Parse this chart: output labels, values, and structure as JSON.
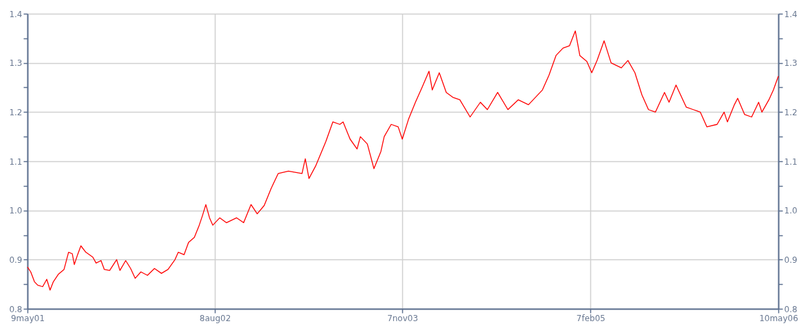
{
  "chart_data": {
    "type": "line",
    "x": [
      "2001-05-09",
      "2001-05-17",
      "2001-05-26",
      "2001-06-03",
      "2001-06-15",
      "2001-06-25",
      "2001-07-03",
      "2001-07-11",
      "2001-07-23",
      "2001-08-06",
      "2001-08-17",
      "2001-08-26",
      "2001-08-31",
      "2001-09-08",
      "2001-09-16",
      "2001-09-28",
      "2001-10-15",
      "2001-10-23",
      "2001-11-04",
      "2001-11-12",
      "2001-11-25",
      "2001-12-12",
      "2001-12-20",
      "2002-01-03",
      "2002-01-15",
      "2002-01-26",
      "2002-02-09",
      "2002-02-25",
      "2002-03-14",
      "2002-03-31",
      "2002-04-16",
      "2002-05-03",
      "2002-05-11",
      "2002-05-25",
      "2002-06-05",
      "2002-06-19",
      "2002-07-01",
      "2002-07-09",
      "2002-07-17",
      "2002-07-26",
      "2002-08-03",
      "2002-08-20",
      "2002-09-05",
      "2002-09-30",
      "2002-10-17",
      "2002-11-04",
      "2002-11-19",
      "2002-12-06",
      "2002-12-23",
      "2003-01-09",
      "2003-02-03",
      "2003-03-08",
      "2003-03-16",
      "2003-03-25",
      "2003-04-10",
      "2003-05-05",
      "2003-05-22",
      "2003-06-08",
      "2003-06-16",
      "2003-07-03",
      "2003-07-20",
      "2003-07-28",
      "2003-08-14",
      "2003-08-30",
      "2003-09-16",
      "2003-09-24",
      "2003-10-11",
      "2003-10-28",
      "2003-11-07",
      "2003-11-22",
      "2003-12-09",
      "2003-12-25",
      "2004-01-11",
      "2004-01-19",
      "2004-02-05",
      "2004-02-22",
      "2004-03-09",
      "2004-03-26",
      "2004-04-20",
      "2004-05-15",
      "2004-06-01",
      "2004-06-26",
      "2004-07-21",
      "2004-08-15",
      "2004-09-09",
      "2004-09-26",
      "2004-10-13",
      "2004-10-29",
      "2004-11-15",
      "2004-12-02",
      "2004-12-18",
      "2005-01-01",
      "2005-01-12",
      "2005-01-29",
      "2005-02-10",
      "2005-02-23",
      "2005-03-12",
      "2005-03-29",
      "2005-04-23",
      "2005-05-09",
      "2005-05-26",
      "2005-06-12",
      "2005-06-28",
      "2005-07-15",
      "2005-08-06",
      "2005-08-17",
      "2005-09-03",
      "2005-09-28",
      "2005-10-15",
      "2005-11-01",
      "2005-11-17",
      "2005-12-12",
      "2005-12-29",
      "2006-01-06",
      "2006-01-23",
      "2006-01-31",
      "2006-02-17",
      "2006-03-06",
      "2006-03-23",
      "2006-03-31",
      "2006-04-17",
      "2006-04-28",
      "2006-05-10"
    ],
    "series": [
      {
        "color": "#ff0000",
        "values": [
          0.885,
          0.875,
          0.855,
          0.848,
          0.845,
          0.86,
          0.838,
          0.855,
          0.87,
          0.88,
          0.915,
          0.912,
          0.89,
          0.91,
          0.928,
          0.915,
          0.905,
          0.893,
          0.898,
          0.88,
          0.878,
          0.9,
          0.878,
          0.898,
          0.882,
          0.862,
          0.875,
          0.868,
          0.882,
          0.872,
          0.88,
          0.9,
          0.915,
          0.91,
          0.935,
          0.945,
          0.97,
          0.99,
          1.012,
          0.985,
          0.97,
          0.985,
          0.975,
          0.985,
          0.975,
          1.012,
          0.993,
          1.01,
          1.045,
          1.075,
          1.08,
          1.075,
          1.105,
          1.065,
          1.09,
          1.14,
          1.18,
          1.175,
          1.18,
          1.145,
          1.125,
          1.15,
          1.135,
          1.085,
          1.12,
          1.15,
          1.175,
          1.17,
          1.145,
          1.185,
          1.22,
          1.25,
          1.283,
          1.245,
          1.28,
          1.24,
          1.23,
          1.225,
          1.19,
          1.22,
          1.205,
          1.24,
          1.205,
          1.225,
          1.215,
          1.23,
          1.245,
          1.275,
          1.315,
          1.33,
          1.335,
          1.365,
          1.315,
          1.303,
          1.28,
          1.305,
          1.345,
          1.3,
          1.29,
          1.305,
          1.28,
          1.235,
          1.205,
          1.2,
          1.24,
          1.22,
          1.255,
          1.21,
          1.205,
          1.2,
          1.17,
          1.175,
          1.2,
          1.18,
          1.215,
          1.228,
          1.195,
          1.19,
          1.22,
          1.2,
          1.225,
          1.245,
          1.273
        ]
      }
    ],
    "xlim": [
      "2001-05-09",
      "2006-05-10"
    ],
    "xticks": [
      {
        "value": "2001-05-09",
        "label": "9may01"
      },
      {
        "value": "2002-08-08",
        "label": "8aug02"
      },
      {
        "value": "2003-11-07",
        "label": "7nov03"
      },
      {
        "value": "2005-02-07",
        "label": "7feb05"
      },
      {
        "value": "2006-05-10",
        "label": "10may06"
      }
    ],
    "ylim": [
      0.8,
      1.4
    ],
    "yticks": [
      {
        "value": 0.8,
        "label": "0.8"
      },
      {
        "value": 0.85,
        "label": null
      },
      {
        "value": 0.9,
        "label": "0.9"
      },
      {
        "value": 0.95,
        "label": null
      },
      {
        "value": 1.0,
        "label": "1.0"
      },
      {
        "value": 1.05,
        "label": null
      },
      {
        "value": 1.1,
        "label": "1.1"
      },
      {
        "value": 1.15,
        "label": null
      },
      {
        "value": 1.2,
        "label": "1.2"
      },
      {
        "value": 1.25,
        "label": null
      },
      {
        "value": 1.3,
        "label": "1.3"
      },
      {
        "value": 1.35,
        "label": null
      },
      {
        "value": 1.4,
        "label": "1.4"
      }
    ],
    "y2lim": [
      0.8,
      1.4
    ],
    "y2ticks": [
      {
        "value": 0.8,
        "label": "0.8"
      },
      {
        "value": 0.85,
        "label": null
      },
      {
        "value": 0.9,
        "label": "0.9"
      },
      {
        "value": 0.95,
        "label": null
      },
      {
        "value": 1.0,
        "label": "1.0"
      },
      {
        "value": 1.05,
        "label": null
      },
      {
        "value": 1.1,
        "label": "1.1"
      },
      {
        "value": 1.15,
        "label": null
      },
      {
        "value": 1.2,
        "label": "1.2"
      },
      {
        "value": 1.25,
        "label": null
      },
      {
        "value": 1.3,
        "label": "1.3"
      },
      {
        "value": 1.35,
        "label": null
      },
      {
        "value": 1.4,
        "label": "1.4"
      }
    ],
    "grid": true
  }
}
